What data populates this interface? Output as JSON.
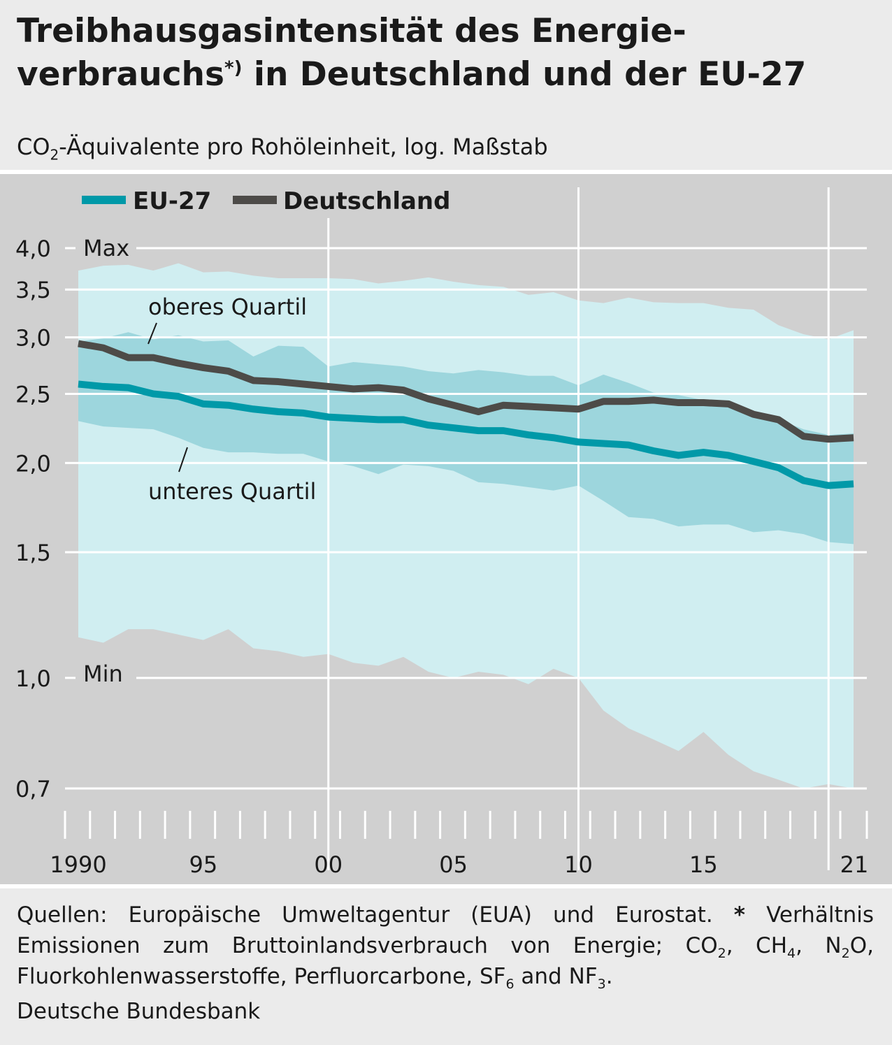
{
  "header": {
    "title_line1": "Treibhausgasintensität des Energie-",
    "title_line2_a": "verbrauchs",
    "title_sup": "*)",
    "title_line2_b": " in Deutschland und der EU-27",
    "subtitle_a": "CO",
    "subtitle_sub": "2",
    "subtitle_b": "-Äquivalente pro Rohöleinheit, log. Maßstab"
  },
  "footer": {
    "source_a": "Quellen: Europäische Umweltagentur (EUA) und Eurostat. ",
    "source_star": "*",
    "source_b": " Verhältnis Emissionen zum Bruttoinlandsverbrauch von Energie; CO",
    "sub_co2": "2",
    "source_c": ", CH",
    "sub_ch4": "4",
    "source_d": ", N",
    "sub_n2o": "2",
    "source_e": "O, Fluorkohlenwasserstoffe, Perfluorcarbone, SF",
    "sub_sf6": "6",
    "source_f": " and NF",
    "sub_nf3": "3",
    "source_g": ".",
    "publisher": "Deutsche Bundesbank"
  },
  "colors": {
    "eu27": "#0099a8",
    "deutschland": "#4d4b48",
    "minmax_band": "#d0eef1",
    "quartile_band": "#9dd6dd",
    "panel": "#d0d0d0",
    "grid": "#ffffff"
  },
  "chart_data": {
    "type": "line",
    "y_scale": "log",
    "ylim": [
      0.7,
      4.0
    ],
    "xlim": [
      1990,
      2021
    ],
    "y_ticks": [
      {
        "value": 4.0,
        "label": "4,0"
      },
      {
        "value": 3.5,
        "label": "3,5"
      },
      {
        "value": 3.0,
        "label": "3,0"
      },
      {
        "value": 2.5,
        "label": "2,5"
      },
      {
        "value": 2.0,
        "label": "2,0"
      },
      {
        "value": 1.5,
        "label": "1,5"
      },
      {
        "value": 1.0,
        "label": "1,0"
      },
      {
        "value": 0.7,
        "label": "0,7"
      }
    ],
    "x_tick_labels": [
      {
        "value": 1990,
        "label": "1990"
      },
      {
        "value": 1995,
        "label": "95"
      },
      {
        "value": 2000,
        "label": "00"
      },
      {
        "value": 2005,
        "label": "05"
      },
      {
        "value": 2010,
        "label": "10"
      },
      {
        "value": 2015,
        "label": "15"
      },
      {
        "value": 2021,
        "label": "21"
      }
    ],
    "x_major_gridlines": [
      2000,
      2010,
      2020
    ],
    "legend": {
      "placement": "top-left",
      "entries": [
        "EU-27",
        "Deutschland"
      ]
    },
    "annotations": {
      "max": "Max",
      "min": "Min",
      "upper_quartile": "oberes Quartil",
      "lower_quartile": "unteres Quartil"
    },
    "x": [
      1990,
      1991,
      1992,
      1993,
      1994,
      1995,
      1996,
      1997,
      1998,
      1999,
      2000,
      2001,
      2002,
      2003,
      2004,
      2005,
      2006,
      2007,
      2008,
      2009,
      2010,
      2011,
      2012,
      2013,
      2014,
      2015,
      2016,
      2017,
      2018,
      2019,
      2020,
      2021
    ],
    "series": [
      {
        "name": "EU-27",
        "values": [
          2.58,
          2.56,
          2.55,
          2.5,
          2.48,
          2.42,
          2.41,
          2.38,
          2.36,
          2.35,
          2.32,
          2.31,
          2.3,
          2.3,
          2.26,
          2.24,
          2.22,
          2.22,
          2.19,
          2.17,
          2.14,
          2.13,
          2.12,
          2.08,
          2.05,
          2.07,
          2.05,
          2.01,
          1.97,
          1.89,
          1.86,
          1.87
        ]
      },
      {
        "name": "Deutschland",
        "values": [
          2.94,
          2.9,
          2.81,
          2.81,
          2.76,
          2.72,
          2.69,
          2.61,
          2.6,
          2.58,
          2.56,
          2.54,
          2.55,
          2.53,
          2.46,
          2.41,
          2.36,
          2.41,
          2.4,
          2.39,
          2.38,
          2.44,
          2.44,
          2.45,
          2.43,
          2.43,
          2.42,
          2.34,
          2.3,
          2.18,
          2.16,
          2.17
        ]
      }
    ],
    "bands": {
      "max": [
        3.72,
        3.78,
        3.79,
        3.72,
        3.81,
        3.7,
        3.71,
        3.66,
        3.63,
        3.63,
        3.63,
        3.62,
        3.57,
        3.6,
        3.64,
        3.59,
        3.55,
        3.53,
        3.44,
        3.47,
        3.38,
        3.35,
        3.41,
        3.36,
        3.35,
        3.35,
        3.3,
        3.28,
        3.12,
        3.03,
        2.98,
        3.07
      ],
      "upper_quartile": [
        2.96,
        2.99,
        3.05,
        2.98,
        3.02,
        2.96,
        2.97,
        2.82,
        2.92,
        2.91,
        2.73,
        2.77,
        2.75,
        2.73,
        2.69,
        2.67,
        2.7,
        2.68,
        2.65,
        2.65,
        2.57,
        2.66,
        2.59,
        2.51,
        2.49,
        2.45,
        2.43,
        2.35,
        2.3,
        2.23,
        2.19,
        2.2
      ],
      "lower_quartile": [
        2.29,
        2.25,
        2.24,
        2.23,
        2.17,
        2.1,
        2.07,
        2.07,
        2.06,
        2.06,
        2.01,
        1.98,
        1.93,
        1.99,
        1.98,
        1.95,
        1.88,
        1.87,
        1.85,
        1.83,
        1.86,
        1.77,
        1.68,
        1.67,
        1.63,
        1.64,
        1.64,
        1.6,
        1.61,
        1.59,
        1.55,
        1.54
      ],
      "min": [
        1.14,
        1.12,
        1.17,
        1.17,
        1.15,
        1.13,
        1.17,
        1.1,
        1.09,
        1.07,
        1.08,
        1.05,
        1.04,
        1.07,
        1.02,
        1.0,
        1.02,
        1.01,
        0.98,
        1.03,
        1.0,
        0.9,
        0.85,
        0.82,
        0.79,
        0.84,
        0.78,
        0.74,
        0.72,
        0.7,
        0.71,
        0.7
      ]
    }
  }
}
